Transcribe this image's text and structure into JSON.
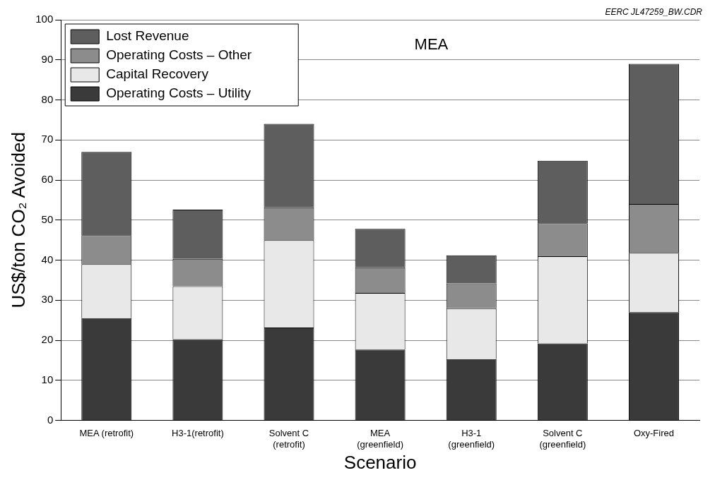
{
  "chart_data": {
    "type": "bar",
    "title": "MEA",
    "xlabel": "Scenario",
    "ylabel": "US$/ton CO₂ Avoided",
    "annotations": [
      "EERC JL47259_BW.CDR"
    ],
    "categories": [
      "MEA (retrofit)",
      "H3-1(retrofit)",
      "Solvent C\n(retrofit)",
      "MEA\n(greenfield)",
      "H3-1\n(greenfield)",
      "Solvent C\n(greenfield)",
      "Oxy-Fired"
    ],
    "stacked": true,
    "series": [
      {
        "name": "Operating Costs – Utility",
        "color": "#3a3a3a",
        "values": [
          25.5,
          20.3,
          23.2,
          17.7,
          15.3,
          19.2,
          27
        ]
      },
      {
        "name": "Capital Recovery",
        "color": "#e8e8e8",
        "values": [
          13.5,
          13.2,
          21.8,
          14.1,
          12.7,
          21.8,
          14.8
        ]
      },
      {
        "name": "Operating Costs – Other",
        "color": "#8c8c8c",
        "values": [
          7.2,
          6.8,
          8.2,
          6.4,
          6.2,
          8.2,
          12.2
        ]
      },
      {
        "name": "Lost Revenue",
        "color": "#5e5e5e",
        "values": [
          20.8,
          12.3,
          20.8,
          9.6,
          7,
          15.6,
          35
        ]
      }
    ],
    "ylim": [
      0,
      100
    ],
    "yticks": [
      0,
      10,
      20,
      30,
      40,
      50,
      60,
      70,
      80,
      90,
      100
    ],
    "grid": "y",
    "legend": "top left"
  }
}
